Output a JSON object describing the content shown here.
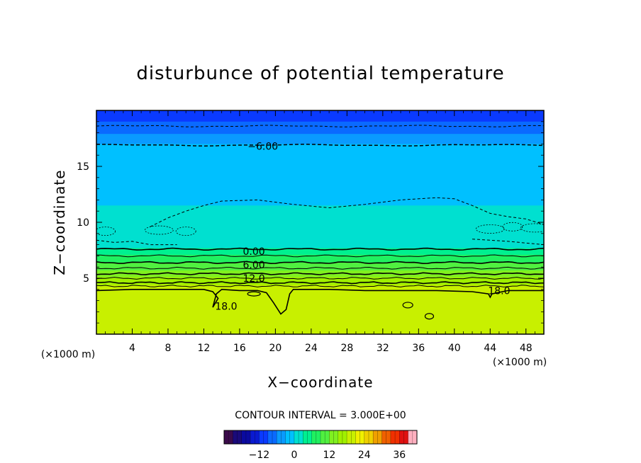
{
  "chart_data": {
    "type": "heatmap",
    "title": "disturbunce of potential temperature",
    "xlabel": "X−coordinate",
    "ylabel": "Z−coordinate",
    "x_unit": "(×1000 m)",
    "x_unit_right": "(×1000 m)",
    "xlim": [
      0,
      50
    ],
    "ylim": [
      0,
      20
    ],
    "x_ticks": [
      4,
      8,
      12,
      16,
      20,
      24,
      28,
      32,
      36,
      40,
      44,
      48
    ],
    "y_ticks": [
      5,
      10,
      15
    ],
    "contour_interval": "CONTOUR INTERVAL = 3.000E+00",
    "contour_labels": [
      {
        "text": "−6.00",
        "x": 18.6,
        "y": 16.8
      },
      {
        "text": "0.00",
        "x": 17.6,
        "y": 7.4
      },
      {
        "text": "6.00",
        "x": 17.6,
        "y": 6.2
      },
      {
        "text": "12.0",
        "x": 17.6,
        "y": 5.0
      },
      {
        "text": "18.0",
        "x": 14.5,
        "y": 2.5
      },
      {
        "text": "18.0",
        "x": 45.0,
        "y": 3.9
      }
    ],
    "layers": [
      {
        "z": 19.0,
        "value": -12
      },
      {
        "z": 17.9,
        "value": -9
      },
      {
        "z": 17.0,
        "value": -6
      },
      {
        "z": 11.5,
        "value": -3
      },
      {
        "z": 7.7,
        "value": 0
      },
      {
        "z": 7.1,
        "value": 3
      },
      {
        "z": 6.4,
        "value": 6
      },
      {
        "z": 5.7,
        "value": 9
      },
      {
        "z": 5.1,
        "value": 12
      },
      {
        "z": 4.4,
        "value": 15
      },
      {
        "z": 3.9,
        "value": 18
      }
    ],
    "colorbar": {
      "ticks": [
        "−12",
        "0",
        "12",
        "24",
        "36"
      ],
      "tick_values": [
        -12,
        0,
        12,
        24,
        36
      ],
      "range": [
        -24,
        42
      ],
      "colors": [
        "#3a0a4a",
        "#1a0a7a",
        "#0a0aa0",
        "#0a1ad0",
        "#0a3aff",
        "#0a6aff",
        "#0a9aff",
        "#00c0ff",
        "#00e0d0",
        "#00f090",
        "#20f060",
        "#50f040",
        "#80f020",
        "#a0f000",
        "#c8f000",
        "#f0f000",
        "#f0d000",
        "#f0a000",
        "#f06000",
        "#f03000",
        "#e01010",
        "#ffb0c0"
      ]
    }
  }
}
